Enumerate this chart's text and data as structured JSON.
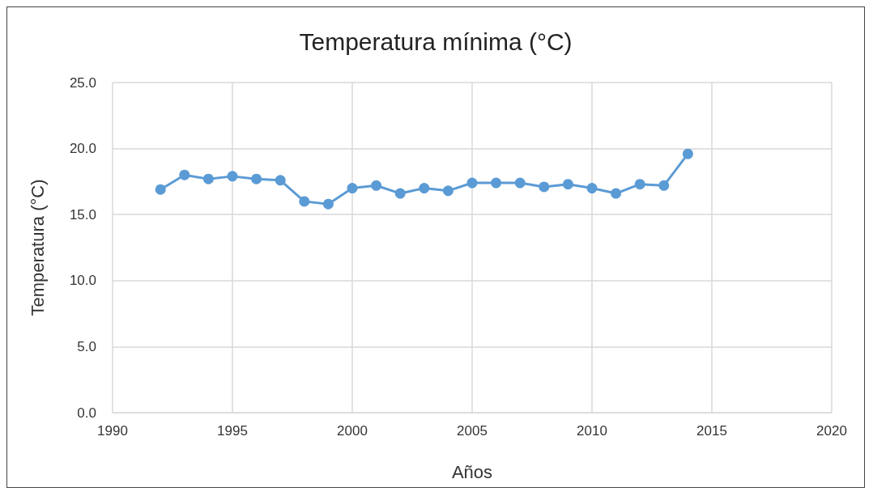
{
  "chart_data": {
    "type": "line",
    "title": "Temperatura mínima (°C)",
    "xlabel": "Años",
    "ylabel": "Temperatura (°C)",
    "x": [
      1992,
      1993,
      1994,
      1995,
      1996,
      1997,
      1998,
      1999,
      2000,
      2001,
      2002,
      2003,
      2004,
      2005,
      2006,
      2007,
      2008,
      2009,
      2010,
      2011,
      2012,
      2013,
      2014
    ],
    "series": [
      {
        "color": "#5b9bd5",
        "values": [
          16.9,
          18.0,
          17.7,
          17.9,
          17.7,
          17.6,
          16.0,
          15.8,
          17.0,
          17.2,
          16.6,
          17.0,
          16.8,
          17.4,
          17.4,
          17.4,
          17.1,
          17.3,
          17.0,
          16.6,
          17.3,
          17.2,
          19.6
        ]
      }
    ],
    "xlim": [
      1990,
      2020
    ],
    "xticks": [
      1990,
      1995,
      2000,
      2005,
      2010,
      2015,
      2020
    ],
    "ylim": [
      0,
      25
    ],
    "yticks": [
      {
        "value": 0,
        "label": "0.0"
      },
      {
        "value": 5,
        "label": "5.0"
      },
      {
        "value": 10,
        "label": "10.0"
      },
      {
        "value": 15,
        "label": "15.0"
      },
      {
        "value": 20,
        "label": "20.0"
      },
      {
        "value": 25,
        "label": "25.0"
      }
    ],
    "grid": true,
    "marker": "circle",
    "line_style": "solid"
  }
}
